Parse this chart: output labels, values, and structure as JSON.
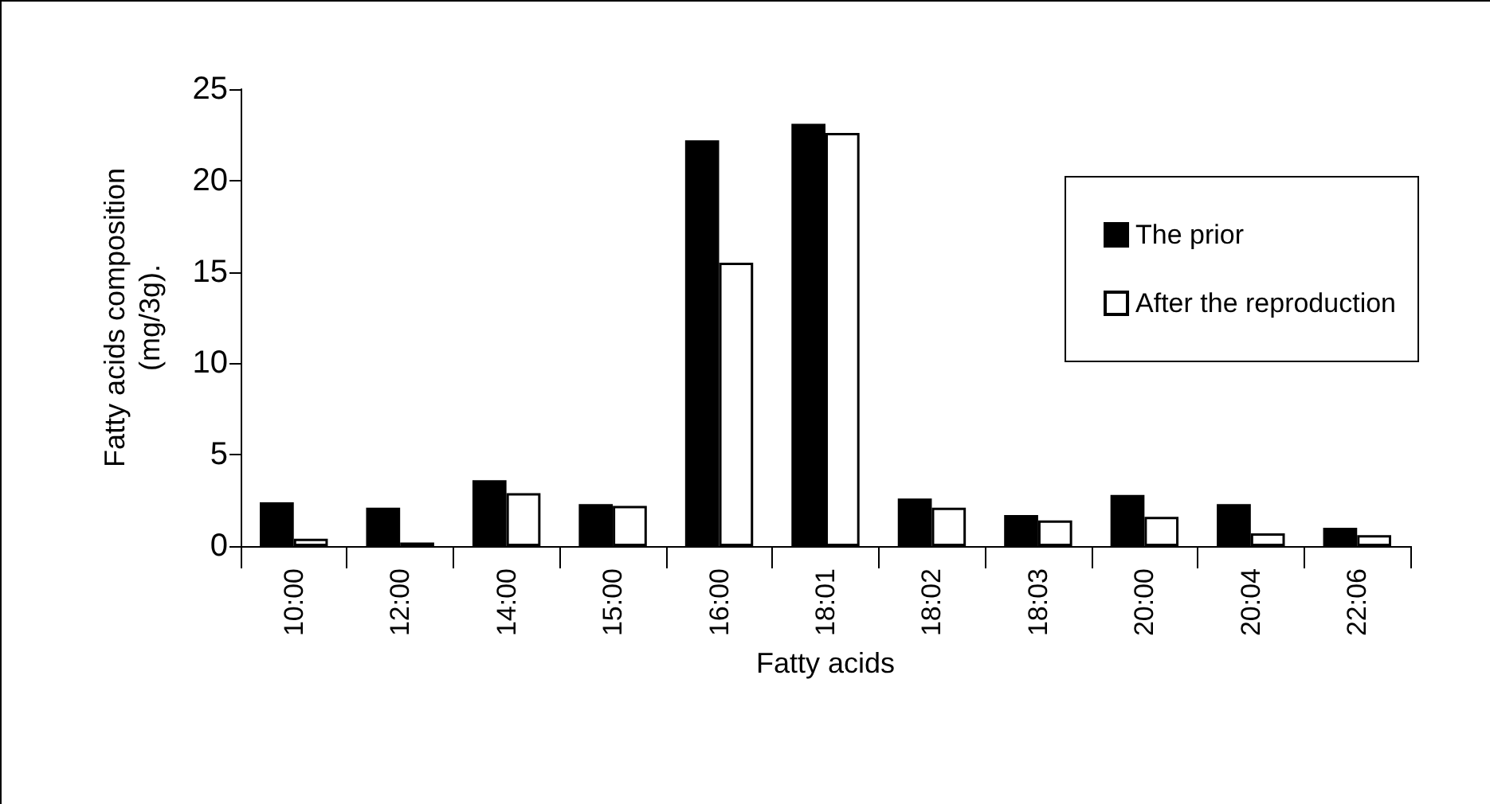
{
  "chart_data": {
    "type": "bar",
    "xlabel": "Fatty acids",
    "ylabel": "Fatty acids composition\n(mg/3g).",
    "categories": [
      "10:00",
      "12:00",
      "14:00",
      "15:00",
      "16:00",
      "18:01",
      "18:02",
      "18:03",
      "20:00",
      "20:04",
      "22:06"
    ],
    "series": [
      {
        "name": "The prior",
        "color": "#000000",
        "values": [
          2.4,
          2.1,
          3.6,
          2.3,
          22.2,
          23.1,
          2.6,
          1.7,
          2.8,
          2.3,
          1.0
        ]
      },
      {
        "name": "After the reproduction",
        "color": "#ffffff",
        "values": [
          0.4,
          0.2,
          2.9,
          2.2,
          15.5,
          22.6,
          2.1,
          1.4,
          1.6,
          0.7,
          0.6
        ]
      }
    ],
    "ylim": [
      0,
      25
    ],
    "yticks": [
      0,
      5,
      10,
      15,
      20,
      25
    ],
    "grid": false,
    "legend": "top right"
  }
}
